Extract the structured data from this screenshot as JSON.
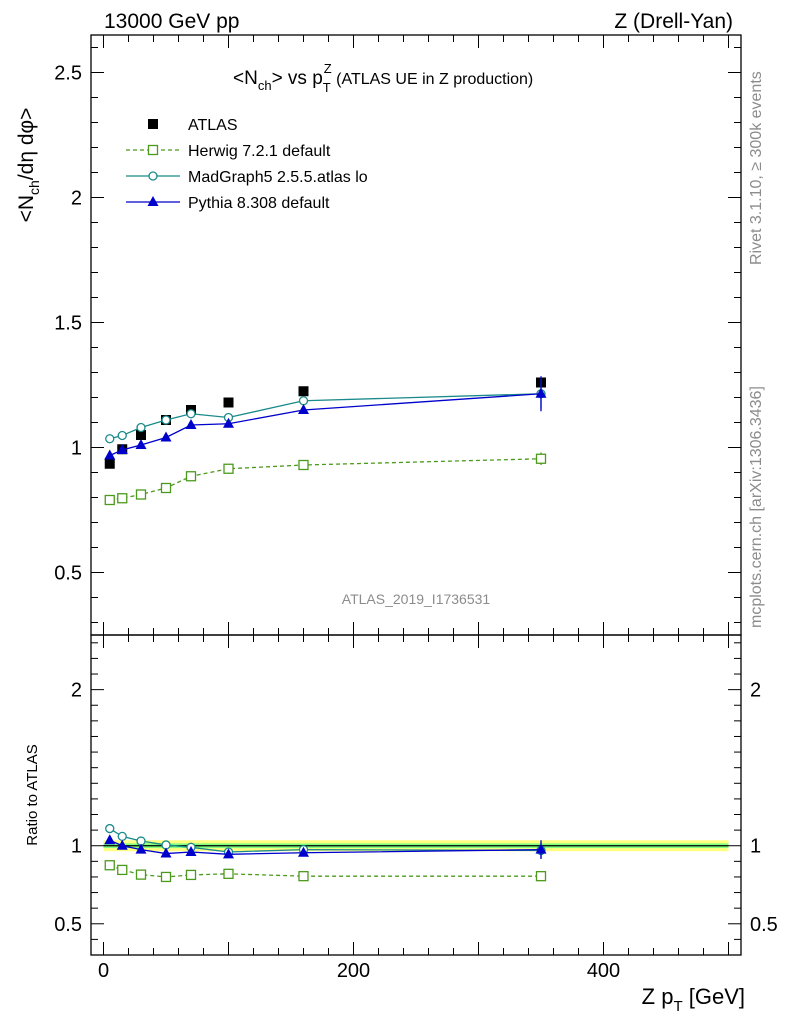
{
  "header": {
    "left": "13000 GeV pp",
    "right": "Z (Drell-Yan)"
  },
  "side_texts": {
    "rivet": "Rivet 3.1.10, ≥ 300k events",
    "mcplots": "mcplots.cern.ch [arXiv:1306.3436]"
  },
  "watermark": "ATLAS_2019_I1736531",
  "colors": {
    "herwig": "#4c9a1c",
    "madgraph": "#1a8a8a",
    "pythia": "#0000cc",
    "atlas": "#000000",
    "band_inner": "#80ff80",
    "band_outer": "#ffff80"
  },
  "chart_data": [
    {
      "type": "scatter",
      "panel": "main",
      "title": "<N_ch> vs p_T^Z (ATLAS UE in Z production)",
      "title_parts": {
        "a": "<N",
        "a_sub": "ch",
        "b": "> vs p",
        "b_sub": "T",
        "b_sup": "Z",
        "c": " (ATLAS UE in Z production)"
      },
      "ylabel": "<N_ch/dη dφ>",
      "ylabel_parts": {
        "a": "<N",
        "a_sub": "ch",
        "b": "/dη dφ>"
      },
      "xlim": [
        -10,
        510
      ],
      "ylim": [
        0.25,
        2.65
      ],
      "yticks": [
        0.5,
        1,
        1.5,
        2,
        2.5
      ],
      "ytick_labels": [
        "0.5",
        "1",
        "1.5",
        "2",
        "2.5"
      ],
      "legend_position": "top-left",
      "series": [
        {
          "name": "ATLAS",
          "style": "data",
          "x": [
            5,
            15,
            30,
            50,
            70,
            100,
            160,
            350
          ],
          "y": [
            0.935,
            0.993,
            1.05,
            1.11,
            1.15,
            1.18,
            1.225,
            1.26
          ],
          "yerr": [
            0.01,
            0.01,
            0.01,
            0.01,
            0.01,
            0.012,
            0.015,
            0.02
          ]
        },
        {
          "name": "Herwig 7.2.1 default",
          "style": "herwig",
          "x": [
            5,
            15,
            30,
            50,
            70,
            100,
            160,
            350
          ],
          "y": [
            0.79,
            0.797,
            0.812,
            0.838,
            0.885,
            0.915,
            0.93,
            0.955
          ],
          "yerr": [
            0.005,
            0.005,
            0.005,
            0.006,
            0.006,
            0.008,
            0.01,
            0.025
          ]
        },
        {
          "name": "MadGraph5 2.5.5.atlas lo",
          "style": "madgraph",
          "x": [
            5,
            15,
            30,
            50,
            70,
            100,
            160,
            350
          ],
          "y": [
            1.035,
            1.048,
            1.08,
            1.11,
            1.135,
            1.12,
            1.187,
            1.215
          ],
          "yerr": [
            0.005,
            0.005,
            0.005,
            0.006,
            0.006,
            0.008,
            0.012,
            0.06
          ]
        },
        {
          "name": "Pythia 8.308 default",
          "style": "pythia",
          "x": [
            5,
            15,
            30,
            50,
            70,
            100,
            160,
            350
          ],
          "y": [
            0.968,
            0.99,
            1.01,
            1.04,
            1.09,
            1.095,
            1.15,
            1.215
          ],
          "yerr": [
            0.005,
            0.005,
            0.005,
            0.006,
            0.006,
            0.008,
            0.012,
            0.07
          ]
        }
      ]
    },
    {
      "type": "scatter",
      "panel": "ratio",
      "ylabel": "Ratio to ATLAS",
      "xlabel": "Z p_T [GeV]",
      "xlabel_parts": {
        "a": "Z p",
        "a_sub": "T",
        "b": " [GeV]"
      },
      "xlim": [
        -10,
        510
      ],
      "ylim": [
        0.3,
        2.35
      ],
      "xticks": [
        0,
        200,
        400
      ],
      "xtick_labels": [
        "0",
        "200",
        "400"
      ],
      "yticks": [
        0.5,
        1,
        2
      ],
      "ytick_labels": [
        "0.5",
        "1",
        "2"
      ],
      "band_inner": [
        0.985,
        1.015
      ],
      "band_outer": [
        0.965,
        1.035
      ],
      "series": [
        {
          "name": "Herwig 7.2.1 default",
          "style": "herwig",
          "x": [
            5,
            15,
            30,
            50,
            70,
            100,
            160,
            350
          ],
          "y": [
            0.875,
            0.845,
            0.815,
            0.8,
            0.813,
            0.82,
            0.805,
            0.805
          ],
          "yerr": [
            0.005,
            0.005,
            0.005,
            0.006,
            0.006,
            0.008,
            0.01,
            0.012
          ]
        },
        {
          "name": "MadGraph5 2.5.5.atlas lo",
          "style": "madgraph",
          "x": [
            5,
            15,
            30,
            50,
            70,
            100,
            160,
            350
          ],
          "y": [
            1.11,
            1.06,
            1.03,
            1.005,
            0.99,
            0.96,
            0.975,
            0.97
          ],
          "yerr": [
            0.005,
            0.005,
            0.005,
            0.006,
            0.006,
            0.008,
            0.01,
            0.05
          ]
        },
        {
          "name": "Pythia 8.308 default",
          "style": "pythia",
          "x": [
            5,
            15,
            30,
            50,
            70,
            100,
            160,
            350
          ],
          "y": [
            1.035,
            1.0,
            0.975,
            0.95,
            0.96,
            0.945,
            0.955,
            0.975
          ],
          "yerr": [
            0.005,
            0.005,
            0.005,
            0.006,
            0.006,
            0.008,
            0.01,
            0.06
          ]
        }
      ]
    }
  ]
}
